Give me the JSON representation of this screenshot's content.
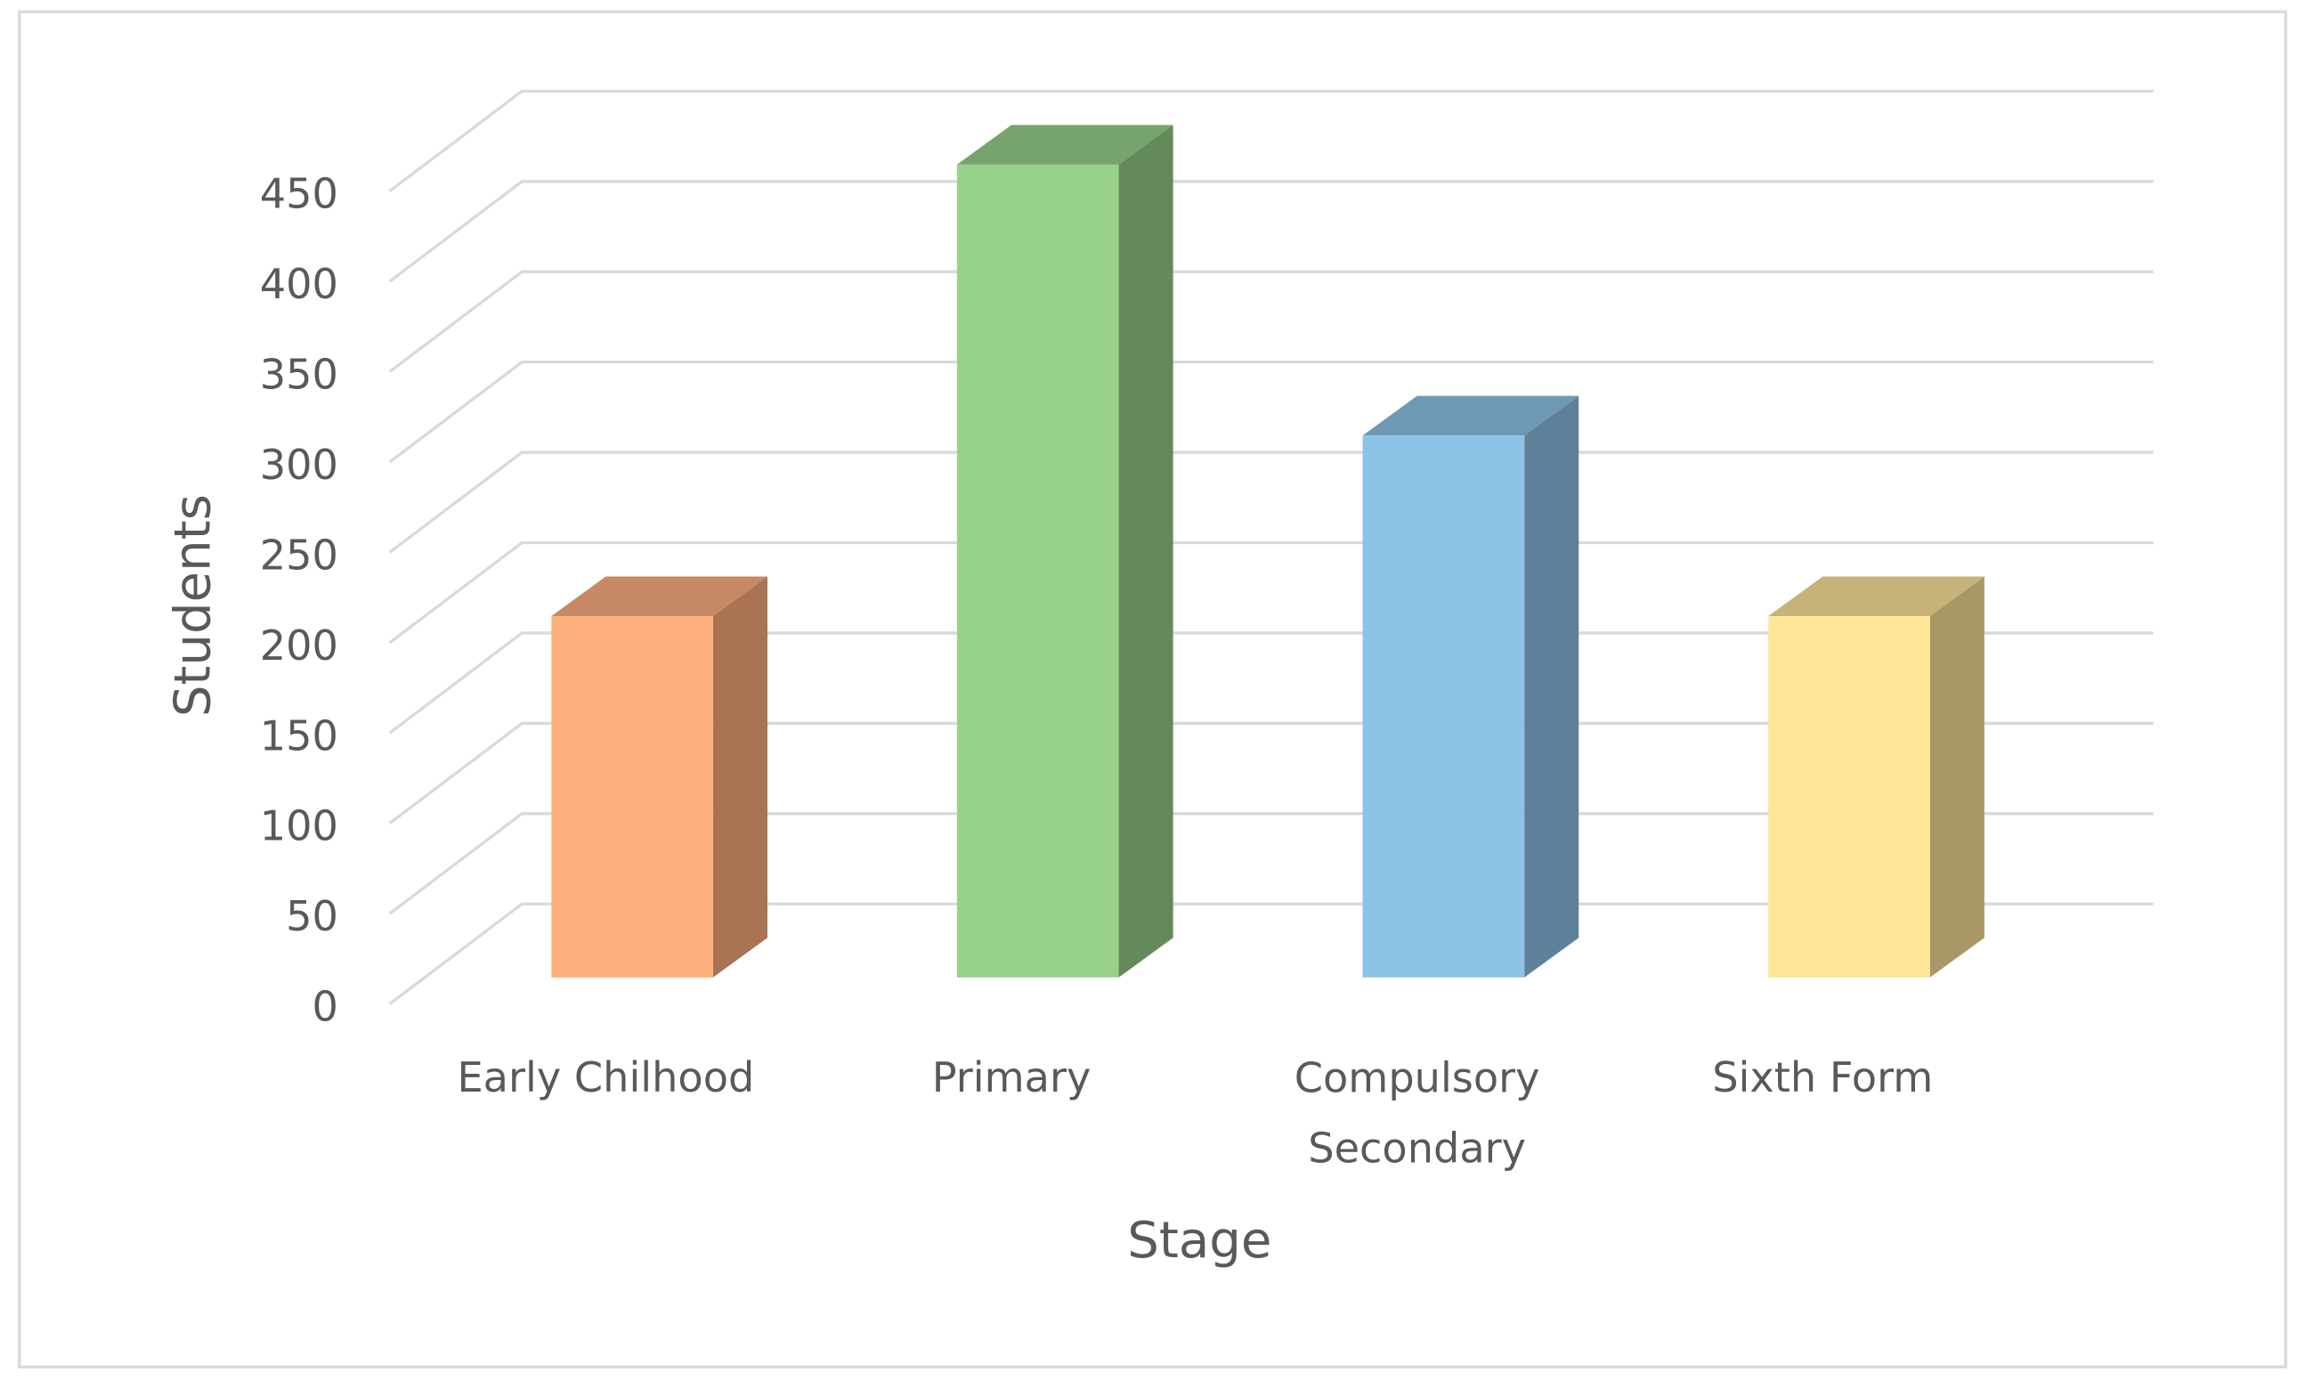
{
  "chart_data": {
    "type": "bar3d",
    "x_label": "Stage",
    "y_label": "Students",
    "categories": [
      "Early Chilhood",
      "Primary",
      "Compulsory Secondary",
      "Sixth Form"
    ],
    "values": [
      200,
      450,
      300,
      200
    ],
    "colors": [
      "#ffb07f",
      "#98d18a",
      "#8ec3e8",
      "#ffe699"
    ],
    "ylim": [
      0,
      450
    ],
    "yticks": [
      0,
      50,
      100,
      150,
      200,
      250,
      300,
      350,
      400,
      450
    ],
    "grid": true
  }
}
